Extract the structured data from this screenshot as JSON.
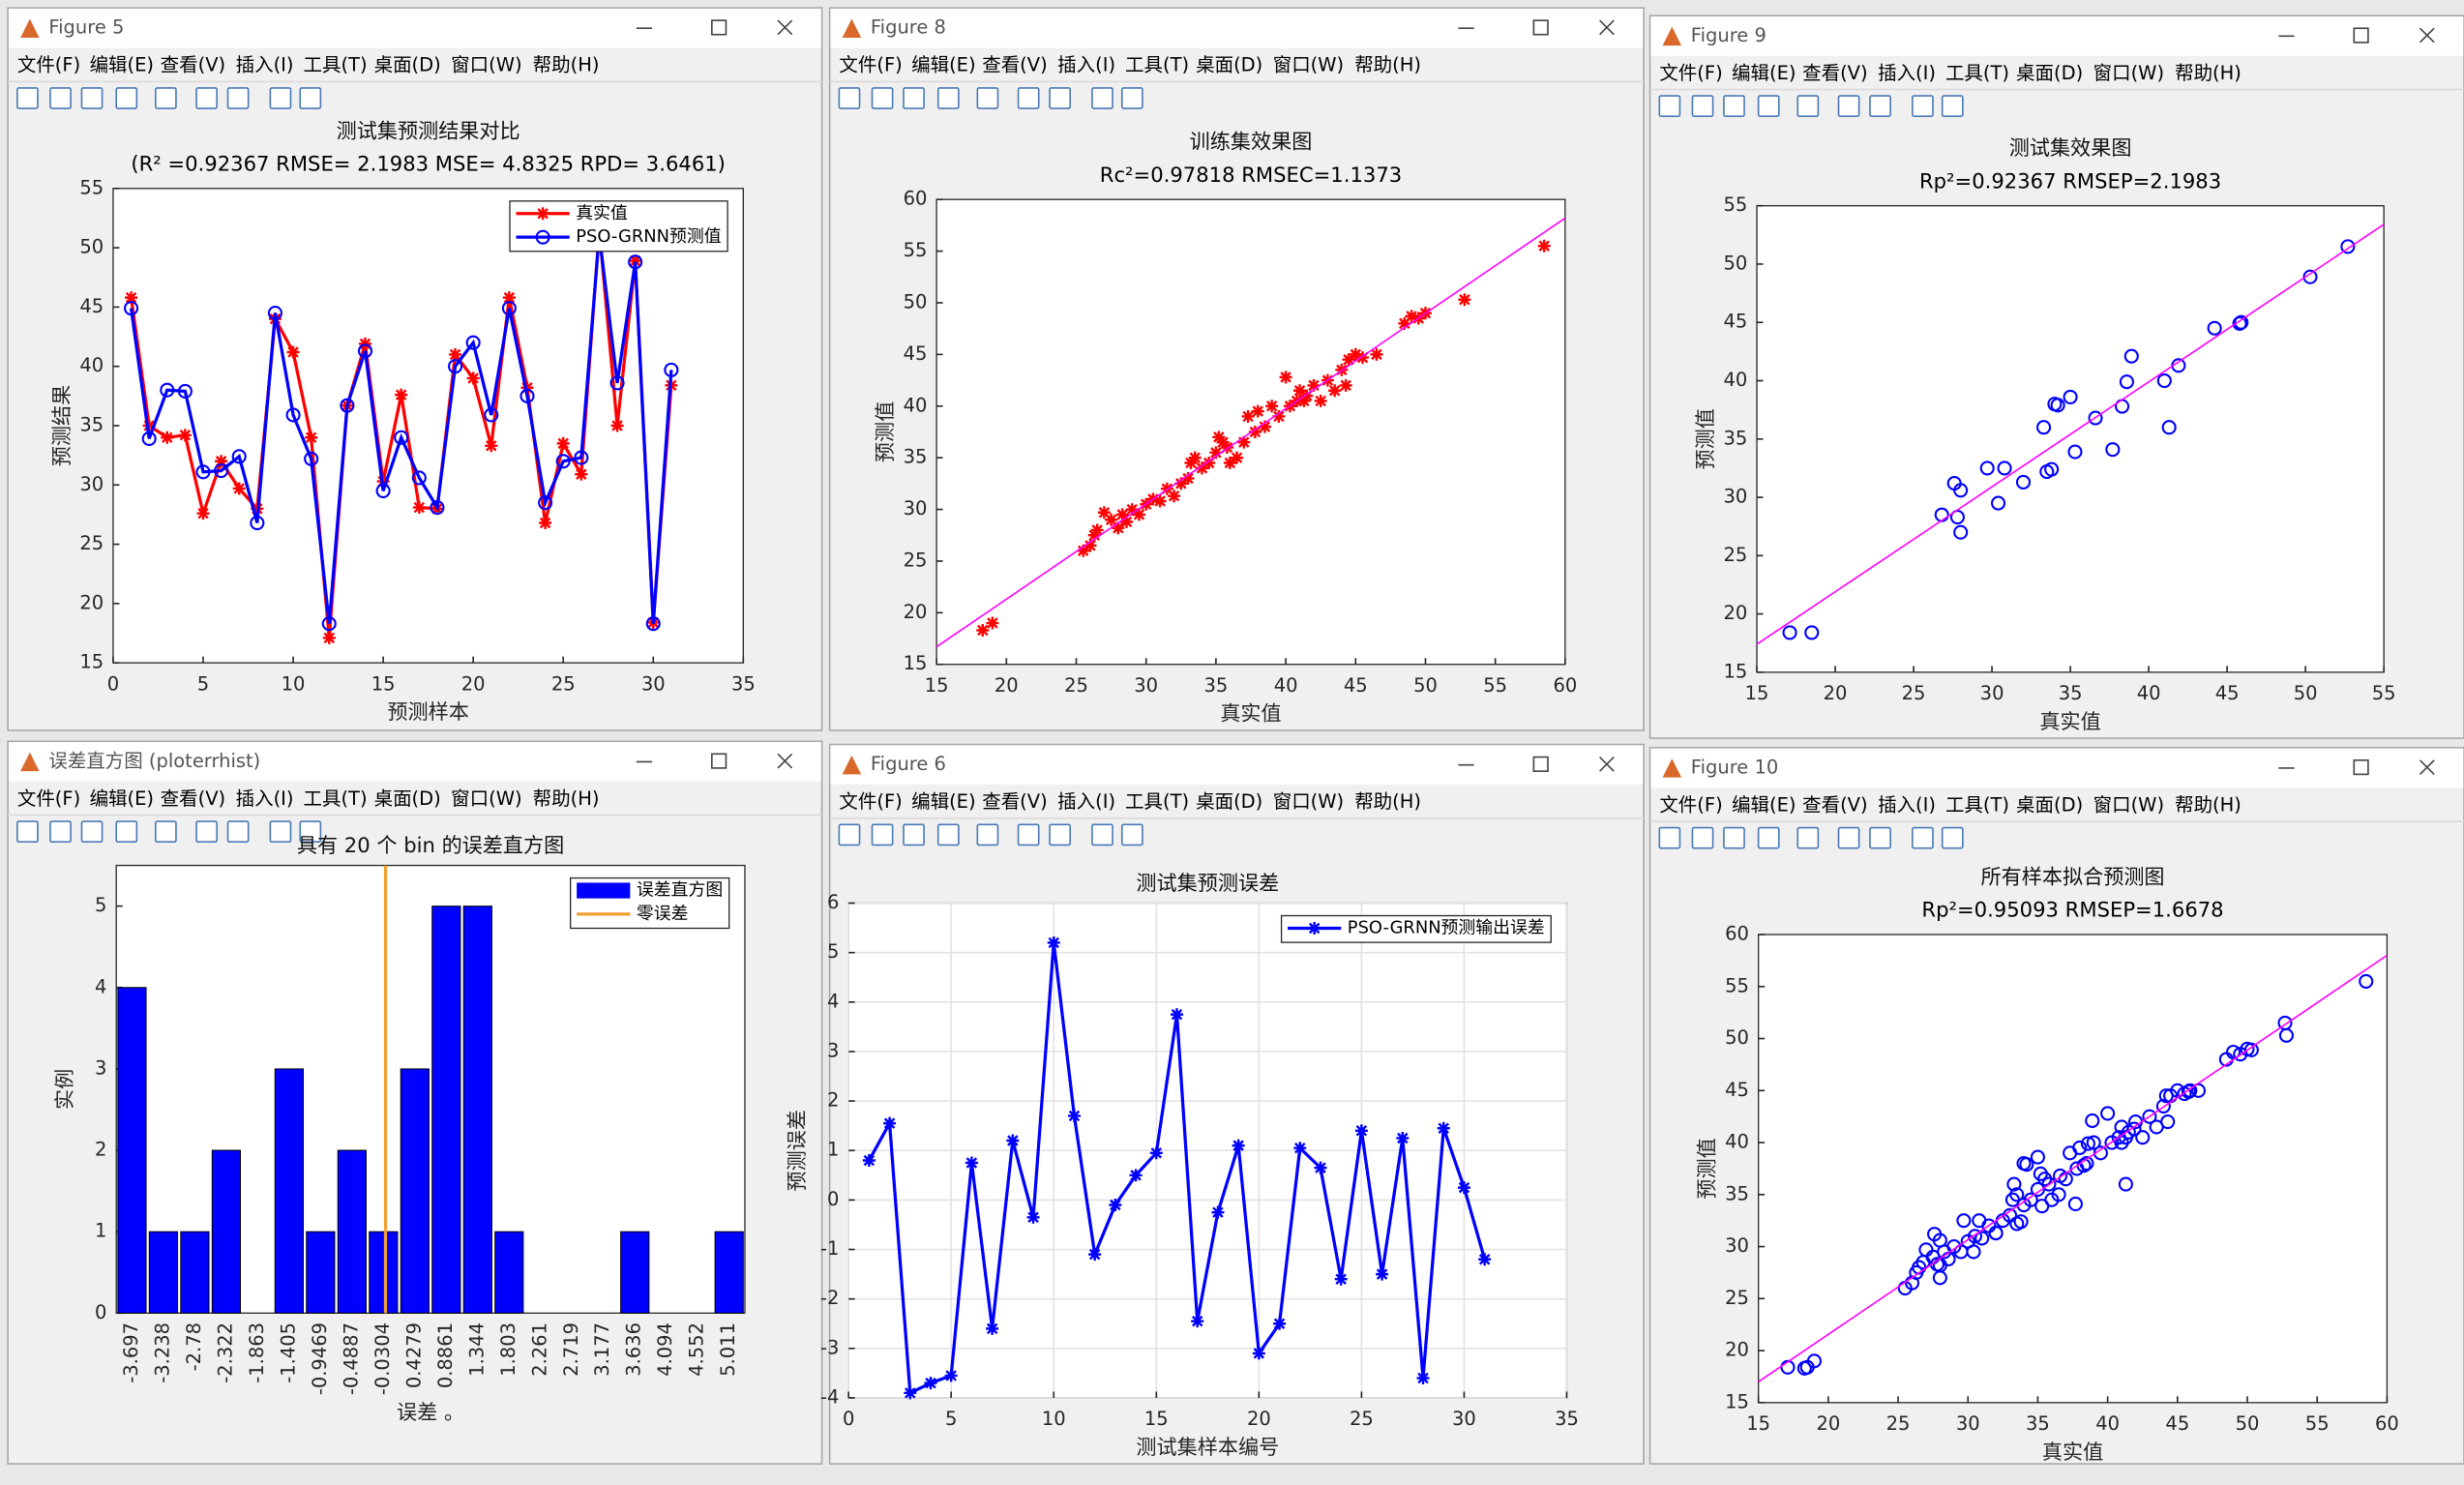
{
  "menu": [
    "文件(F)",
    "编辑(E)",
    "查看(V)",
    "插入(I)",
    "工具(T)",
    "桌面(D)",
    "窗口(W)",
    "帮助(H)"
  ],
  "windows": [
    {
      "title": "Figure 5",
      "chart": {
        "type": "line",
        "title": "测试集预测结果对比",
        "subtitle": "(R² =0.92367 RMSE= 2.1983 MSE= 4.8325 RPD= 3.6461)",
        "xlabel": "预测样本",
        "ylabel": "预测结果",
        "x": [
          1,
          2,
          3,
          4,
          5,
          6,
          7,
          8,
          9,
          10,
          11,
          12,
          13,
          14,
          15,
          16,
          17,
          18,
          19,
          20,
          21,
          22,
          23,
          24,
          25,
          26,
          27,
          28,
          29,
          30,
          31
        ],
        "series": [
          {
            "name": "真实值",
            "color": "#ff0000",
            "marker": "*",
            "values": [
              45.8,
              35,
              34,
              34.2,
              27.6,
              32,
              29.7,
              28,
              44,
              41.2,
              34,
              17.1,
              36.7,
              41.9,
              30.3,
              37.6,
              28.1,
              28,
              41,
              39,
              33.3,
              45.8,
              38.2,
              26.8,
              33.5,
              30.9,
              51.5,
              35,
              48.9,
              18.4,
              38.4
            ]
          },
          {
            "name": "PSO-GRNN预测值",
            "color": "#0000ff",
            "marker": "o",
            "values": [
              44.9,
              33.9,
              38,
              37.9,
              31.1,
              31.2,
              32.4,
              26.8,
              44.5,
              35.9,
              32.2,
              18.3,
              36.7,
              41.3,
              29.5,
              34,
              30.6,
              28.1,
              40,
              42,
              35.9,
              44.9,
              37.5,
              28.5,
              32,
              32.3,
              51.1,
              38.6,
              48.8,
              18.3,
              39.7
            ]
          }
        ],
        "xlim": [
          0,
          35
        ],
        "xticks": [
          0,
          5,
          10,
          15,
          20,
          25,
          30,
          35
        ],
        "ylim": [
          15,
          55
        ],
        "yticks": [
          15,
          20,
          25,
          30,
          35,
          40,
          45,
          50,
          55
        ],
        "grid": false,
        "legend": "upper right"
      }
    },
    {
      "title": "Figure 8",
      "chart": {
        "type": "scatter",
        "title": "训练集效果图",
        "subtitle": "Rc²=0.97818  RMSEC=1.1373",
        "xlabel": "真实值",
        "ylabel": "预测值",
        "series": [
          {
            "color": "#ff0000",
            "marker": "*",
            "x": [
              18.3,
              19,
              25.5,
              26,
              26.3,
              26.5,
              27,
              27.5,
              28,
              28.3,
              28.6,
              29,
              29.5,
              30,
              30.5,
              31,
              31.5,
              32,
              32.5,
              33,
              33.2,
              33.5,
              34,
              34.5,
              35,
              35.2,
              35.5,
              35.8,
              36,
              36.5,
              37,
              37.3,
              37.8,
              38,
              38.5,
              39,
              39.5,
              40,
              40.3,
              40.8,
              41,
              41.3,
              41.5,
              42,
              42.5,
              43,
              43.5,
              44,
              44.3,
              44.5,
              45,
              45.5,
              46.5,
              48.5,
              49,
              49.5,
              50,
              52.8,
              58.5
            ],
            "values": [
              18.3,
              19,
              26,
              26.5,
              27.5,
              28,
              29.7,
              29,
              28.2,
              29.5,
              28.8,
              30,
              29.5,
              30.5,
              31,
              30.8,
              32,
              31.3,
              32.5,
              33,
              34.5,
              35,
              34,
              34.5,
              35.5,
              37,
              36.5,
              36,
              34.5,
              35,
              36.5,
              39,
              37.5,
              39.5,
              38,
              40,
              39,
              42.8,
              40,
              40.5,
              41.5,
              40.5,
              41,
              42,
              40.5,
              42.5,
              41.5,
              43.5,
              42,
              44.5,
              45,
              44.7,
              45,
              48,
              48.7,
              48.5,
              49,
              50.3,
              55.5
            ]
          },
          {
            "color": "#ff00ff",
            "x": [
              15,
              60
            ],
            "values": [
              16.7,
              58.2
            ]
          }
        ],
        "xlim": [
          15,
          60
        ],
        "xticks": [
          15,
          20,
          25,
          30,
          35,
          40,
          45,
          50,
          55,
          60
        ],
        "ylim": [
          15,
          60
        ],
        "yticks": [
          15,
          20,
          25,
          30,
          35,
          40,
          45,
          50,
          55,
          60
        ],
        "grid": false
      }
    },
    {
      "title": "Figure 9",
      "chart": {
        "type": "scatter",
        "title": "测试集效果图",
        "subtitle": "Rp²=0.92367  RMSEP=2.1983",
        "xlabel": "真实值",
        "ylabel": "预测值",
        "series": [
          {
            "color": "#0000ff",
            "marker": "o",
            "x": [
              17.1,
              18.5,
              26.8,
              27.6,
              27.8,
              28,
              28,
              29.7,
              30.4,
              30.8,
              32,
              33.3,
              33.5,
              33.8,
              34,
              34.2,
              35,
              35.3,
              36.6,
              37.7,
              38.3,
              38.6,
              38.9,
              41,
              41.3,
              41.9,
              44.2,
              45.8,
              45.9,
              50.3,
              52.7
            ],
            "values": [
              18.4,
              18.4,
              28.5,
              31.2,
              28.3,
              27,
              30.6,
              32.5,
              29.5,
              32.5,
              31.3,
              36,
              32.2,
              32.4,
              38,
              37.9,
              38.6,
              33.9,
              36.8,
              34.1,
              37.8,
              39.9,
              42.1,
              40,
              36,
              41.3,
              44.5,
              44.9,
              45,
              48.9,
              51.5
            ]
          },
          {
            "color": "#ff00ff",
            "x": [
              15,
              55
            ],
            "values": [
              17.4,
              53.4
            ]
          }
        ],
        "xlim": [
          15,
          55
        ],
        "xticks": [
          15,
          20,
          25,
          30,
          35,
          40,
          45,
          50,
          55
        ],
        "ylim": [
          15,
          55
        ],
        "yticks": [
          15,
          20,
          25,
          30,
          35,
          40,
          45,
          50,
          55
        ],
        "grid": false
      }
    },
    {
      "title": "误差直方图 (ploterrhist)",
      "chart": {
        "type": "bar",
        "title": "具有 20 个 bin 的误差直方图",
        "xlabel": "误差 。",
        "ylabel": "实例",
        "categories": [
          "-3.697",
          "-3.238",
          "-2.78",
          "-2.322",
          "-1.863",
          "-1.405",
          "-0.9469",
          "-0.4887",
          "-0.0304",
          "0.4279",
          "0.8861",
          "1.344",
          "1.803",
          "2.261",
          "2.719",
          "3.177",
          "3.636",
          "4.094",
          "4.552",
          "5.011"
        ],
        "series": [
          {
            "name": "误差直方图",
            "color": "#0000ff",
            "values": [
              4,
              1,
              1,
              2,
              0,
              3,
              1,
              2,
              1,
              3,
              5,
              5,
              1,
              0,
              0,
              0,
              1,
              0,
              0,
              1
            ]
          }
        ],
        "reference_lines": [
          {
            "name": "零误差",
            "color": "#f0a030",
            "value": 0
          }
        ],
        "ylim": [
          0,
          5.5
        ],
        "yticks": [
          0,
          1,
          2,
          3,
          4,
          5
        ],
        "grid": false,
        "legend": "upper right"
      }
    },
    {
      "title": "Figure 6",
      "chart": {
        "type": "line",
        "title": "测试集预测误差",
        "xlabel": "测试集样本编号",
        "ylabel": "预测误差",
        "x": [
          1,
          2,
          3,
          4,
          5,
          6,
          7,
          8,
          9,
          10,
          11,
          12,
          13,
          14,
          15,
          16,
          17,
          18,
          19,
          20,
          21,
          22,
          23,
          24,
          25,
          26,
          27,
          28,
          29,
          30,
          31
        ],
        "series": [
          {
            "name": "PSO-GRNN预测输出误差",
            "color": "#0000ff",
            "marker": "*",
            "values": [
              0.8,
              1.55,
              -3.9,
              -3.7,
              -3.55,
              0.75,
              -2.6,
              1.2,
              -0.35,
              5.2,
              1.7,
              -1.1,
              -0.1,
              0.5,
              0.95,
              3.75,
              -2.45,
              -0.25,
              1.1,
              -3.1,
              -2.5,
              1.05,
              0.65,
              -1.6,
              1.4,
              -1.5,
              1.25,
              -3.6,
              1.45,
              0.25,
              -1.2
            ]
          }
        ],
        "xlim": [
          0,
          35
        ],
        "xticks": [
          0,
          5,
          10,
          15,
          20,
          25,
          30,
          35
        ],
        "ylim": [
          -4,
          6
        ],
        "yticks": [
          -4,
          -3,
          -2,
          -1,
          0,
          1,
          2,
          3,
          4,
          5,
          6
        ],
        "grid": true,
        "legend": "upper right"
      }
    },
    {
      "title": "Figure 10",
      "chart": {
        "type": "scatter",
        "title": "所有样本拟合预测图",
        "subtitle": "Rp²=0.95093  RMSEP=1.6678",
        "xlabel": "真实值",
        "ylabel": "预测值",
        "series": [
          {
            "color": "#0000ff",
            "marker": "o",
            "x": [
              18.3,
              19,
              25.5,
              26,
              26.3,
              26.5,
              27,
              27.5,
              28,
              28.3,
              28.6,
              29,
              29.5,
              30,
              30.5,
              31,
              31.5,
              32,
              32.5,
              33,
              33.2,
              33.5,
              34,
              34.5,
              35,
              35.2,
              35.5,
              35.8,
              36,
              36.5,
              37,
              37.3,
              37.8,
              38,
              38.5,
              39,
              39.5,
              40,
              40.3,
              40.8,
              41,
              41.3,
              41.5,
              42,
              42.5,
              43,
              43.5,
              44,
              44.3,
              44.5,
              45,
              45.5,
              46.5,
              48.5,
              49,
              49.5,
              50,
              52.8,
              58.5,
              17.1,
              18.5,
              26.8,
              27.6,
              27.8,
              28,
              28,
              29.7,
              30.4,
              30.8,
              32,
              33.3,
              33.5,
              33.8,
              34,
              34.2,
              35,
              35.3,
              36.6,
              37.7,
              38.3,
              38.6,
              38.9,
              41,
              41.3,
              41.9,
              44.2,
              45.8,
              45.9,
              50.3,
              52.7
            ],
            "values": [
              18.3,
              19,
              26,
              26.5,
              27.5,
              28,
              29.7,
              29,
              28.2,
              29.5,
              28.8,
              30,
              29.5,
              30.5,
              31,
              30.8,
              32,
              31.3,
              32.5,
              33,
              34.5,
              35,
              34,
              34.5,
              35.5,
              37,
              36.5,
              36,
              34.5,
              35,
              36.5,
              39,
              37.5,
              39.5,
              38,
              40,
              39,
              42.8,
              40,
              40.5,
              41.5,
              40.5,
              41,
              42,
              40.5,
              42.5,
              41.5,
              43.5,
              42,
              44.5,
              45,
              44.7,
              45,
              48,
              48.7,
              48.5,
              49,
              50.3,
              55.5,
              18.4,
              18.4,
              28.5,
              31.2,
              28.3,
              27,
              30.6,
              32.5,
              29.5,
              32.5,
              31.3,
              36,
              32.2,
              32.4,
              38,
              37.9,
              38.6,
              33.9,
              36.8,
              34.1,
              37.8,
              39.9,
              42.1,
              40,
              36,
              41.3,
              44.5,
              44.9,
              45,
              48.9,
              51.5
            ]
          },
          {
            "color": "#ff00ff",
            "x": [
              15,
              60
            ],
            "values": [
              17.0,
              58.0
            ]
          }
        ],
        "xlim": [
          15,
          60
        ],
        "xticks": [
          15,
          20,
          25,
          30,
          35,
          40,
          45,
          50,
          55,
          60
        ],
        "ylim": [
          15,
          60
        ],
        "yticks": [
          15,
          20,
          25,
          30,
          35,
          40,
          45,
          50,
          55,
          60
        ],
        "grid": false
      }
    }
  ]
}
